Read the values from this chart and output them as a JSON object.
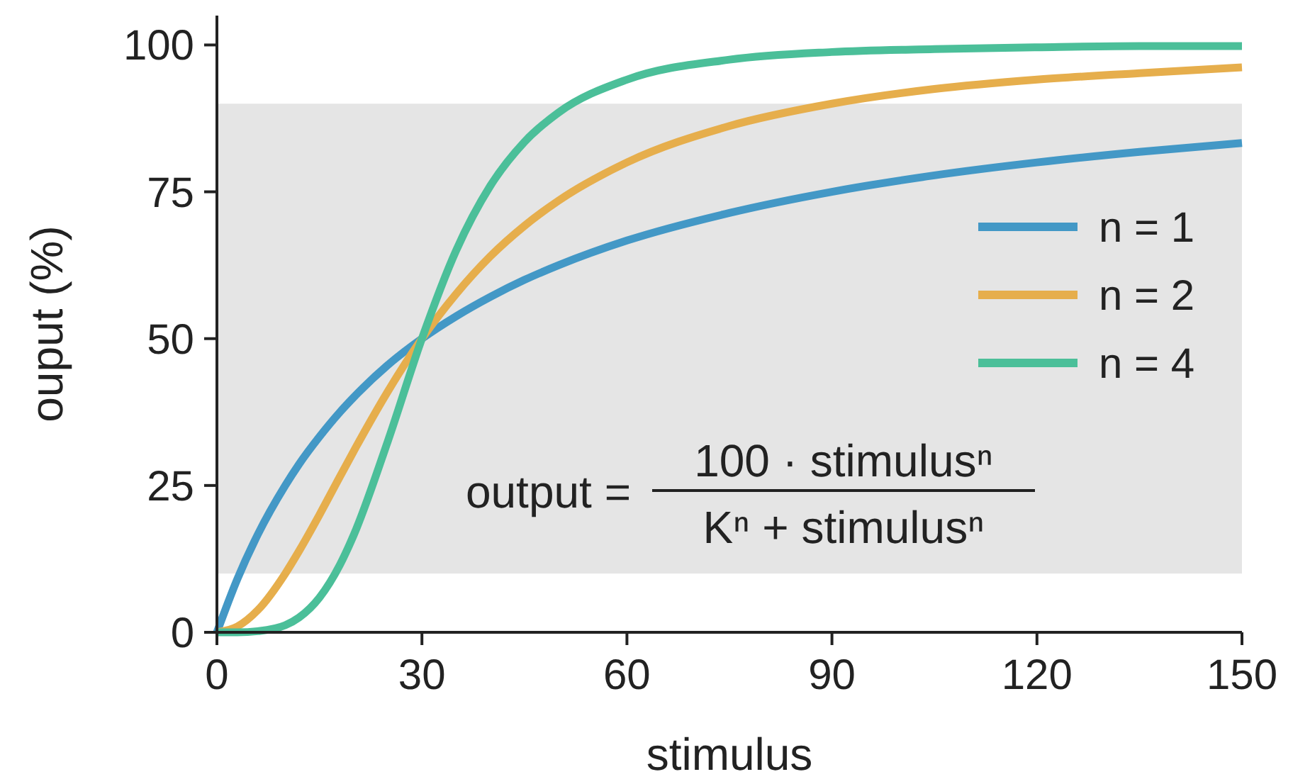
{
  "chart_data": {
    "type": "line",
    "xlabel": "stimulus",
    "ylabel": "ouput (%)",
    "x": [
      0,
      3,
      6,
      10,
      12,
      15,
      18,
      20,
      25,
      30,
      35,
      40,
      45,
      50,
      60,
      75,
      90,
      105,
      120,
      135,
      150
    ],
    "series": [
      {
        "name": "n = 1",
        "color": "#4398c6",
        "values": [
          0,
          9.1,
          16.7,
          25,
          28.6,
          33.3,
          37.5,
          40,
          45.5,
          50,
          53.8,
          57.1,
          60,
          62.5,
          66.7,
          71.4,
          75,
          77.8,
          80,
          81.8,
          83.3
        ]
      },
      {
        "name": "n = 2",
        "color": "#e6ae4c",
        "values": [
          0,
          1,
          3.8,
          10,
          13.8,
          20,
          26.5,
          30.8,
          41,
          50,
          57.6,
          64,
          69.2,
          73.5,
          80,
          86.2,
          90,
          92.5,
          94.1,
          95.2,
          96.2
        ]
      },
      {
        "name": "n = 4",
        "color": "#4bbf99",
        "values": [
          0,
          0,
          0.2,
          1.2,
          2.5,
          5.9,
          11.5,
          16.5,
          32.5,
          50,
          65,
          76,
          83.5,
          88.5,
          94.1,
          97.5,
          98.8,
          99.3,
          99.6,
          99.8,
          99.8
        ]
      }
    ],
    "xlim": [
      0,
      150
    ],
    "xticks": [
      0,
      30,
      60,
      90,
      120,
      150
    ],
    "ylim": [
      0,
      105
    ],
    "yticks": [
      0,
      25,
      50,
      75,
      100
    ],
    "bands": [
      {
        "axis": "y",
        "from": 10,
        "to": 90,
        "color": "#e5e5e5"
      }
    ],
    "annotations": [
      "output =",
      "100 · stimulusⁿ",
      "Kⁿ + stimulusⁿ"
    ],
    "legend": "right",
    "grid": false,
    "line_style": "solid"
  }
}
